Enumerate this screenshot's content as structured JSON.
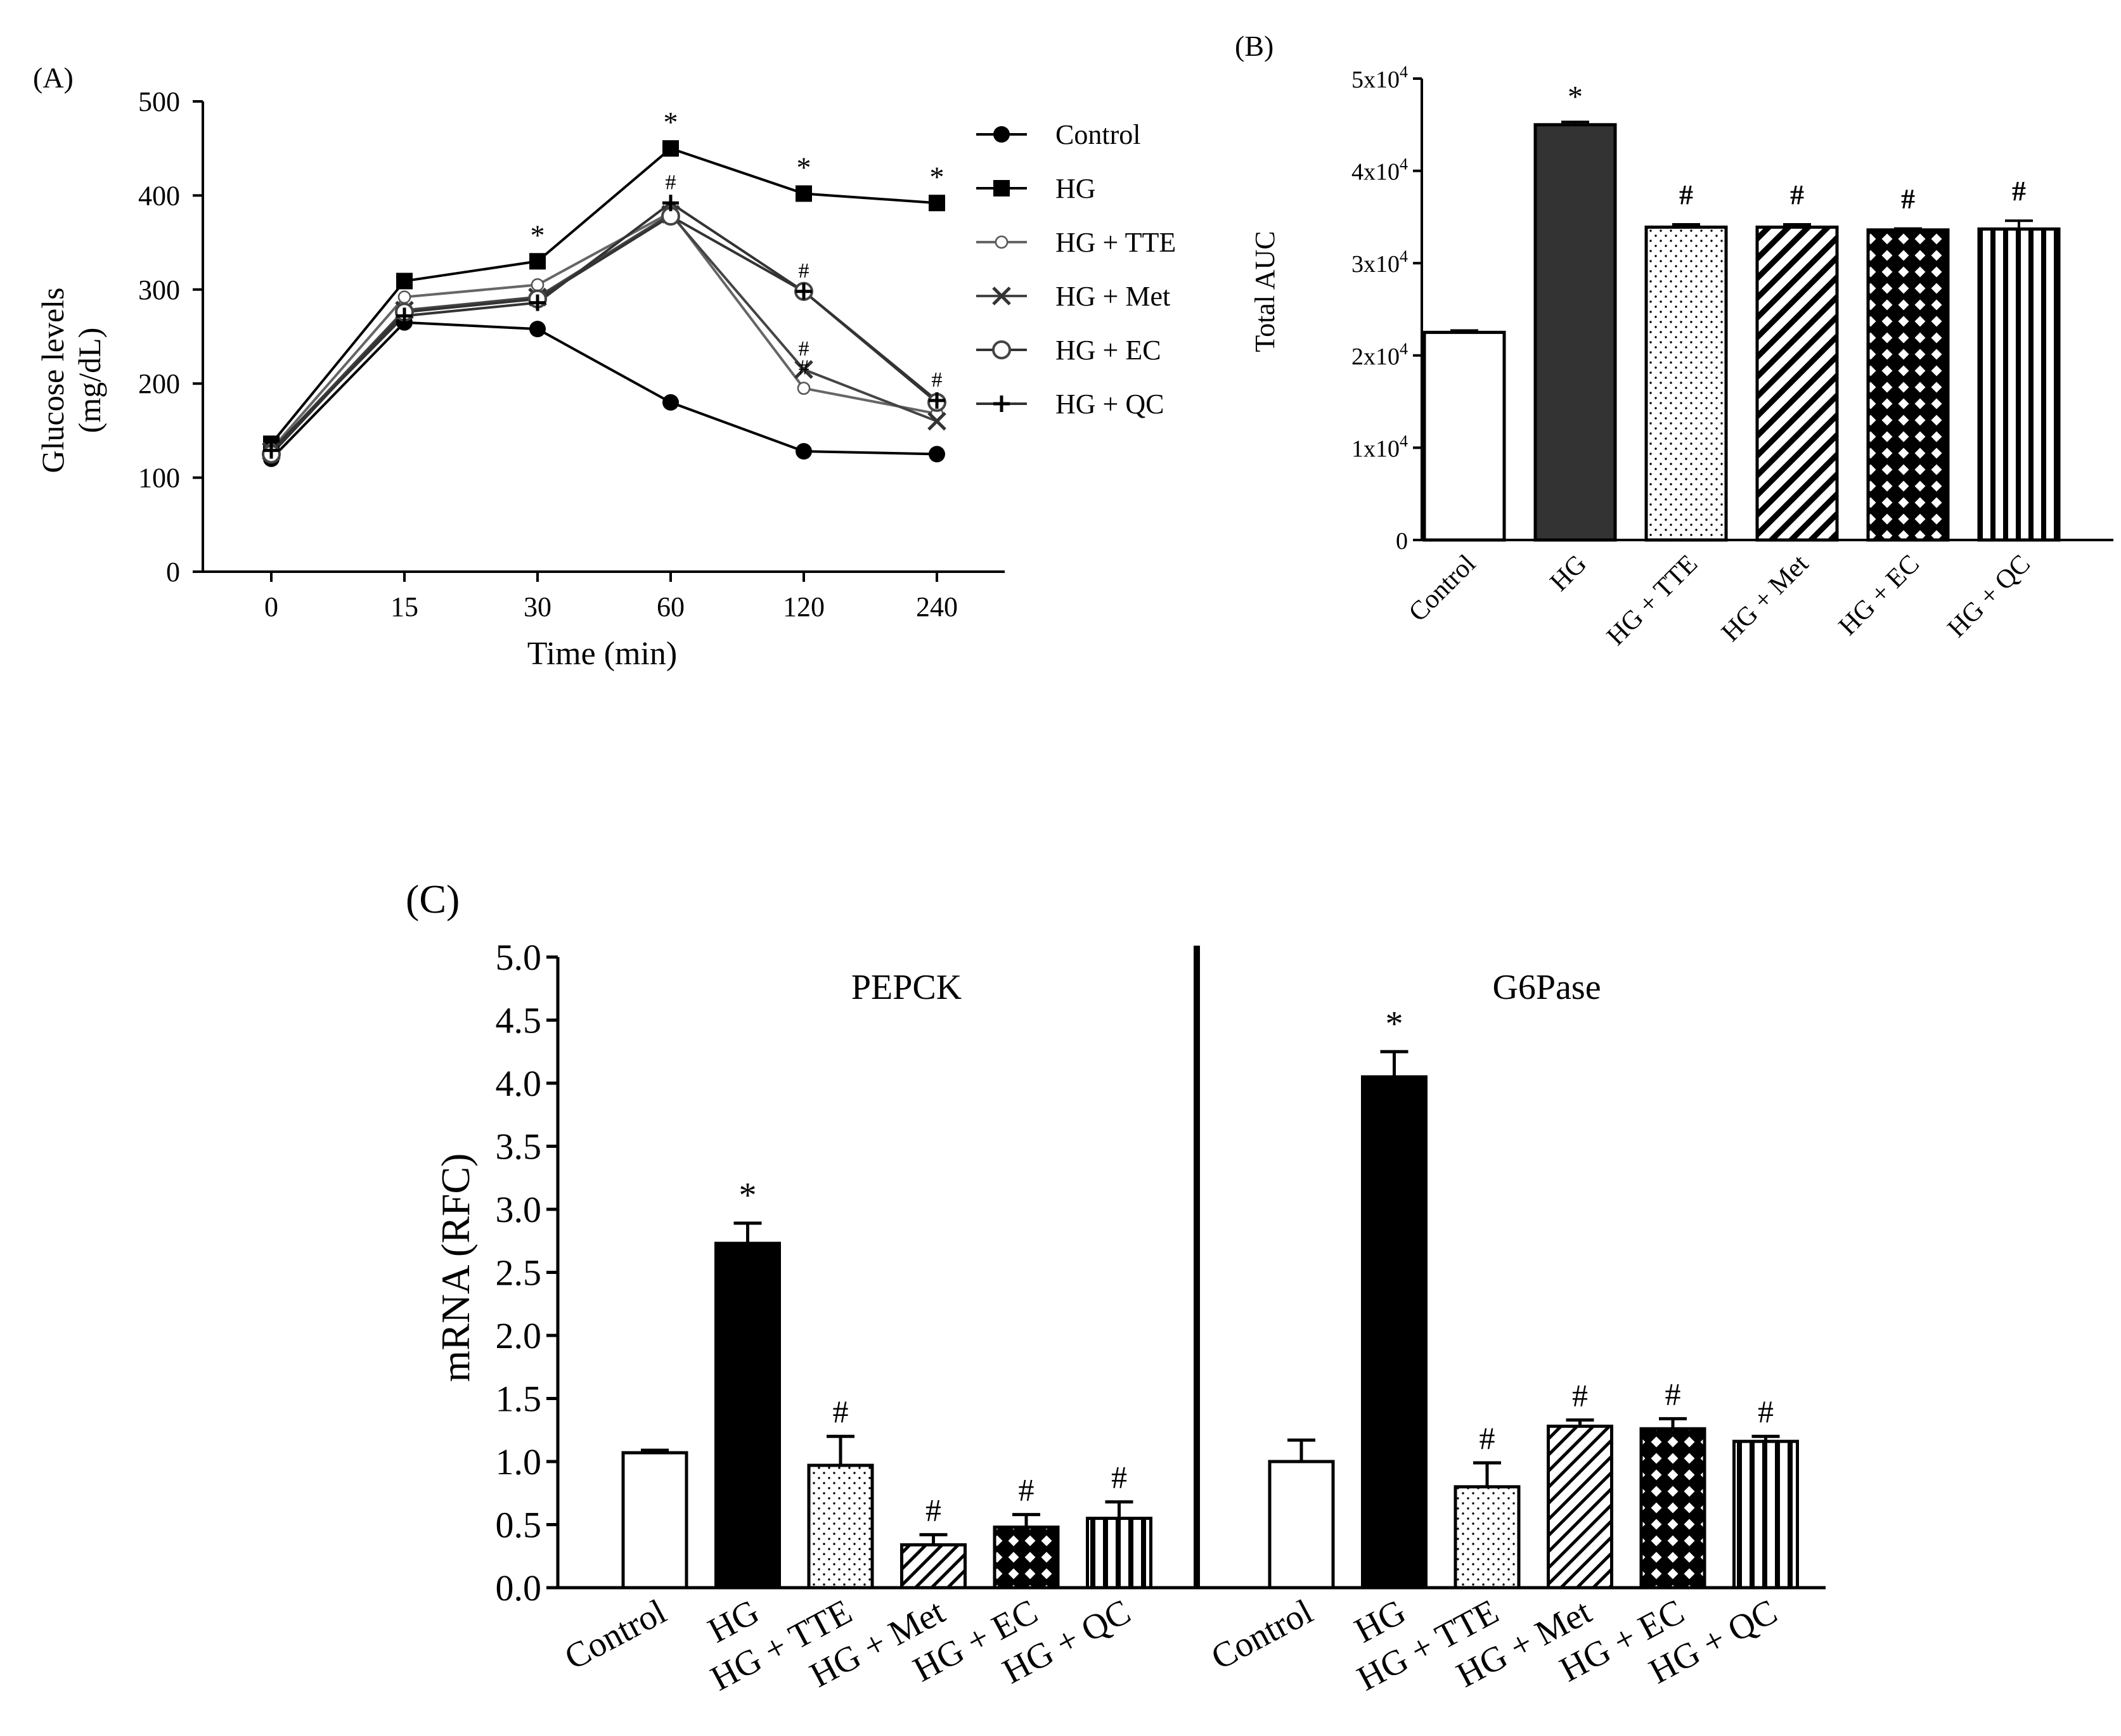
{
  "chart_data": [
    {
      "panel": "(A)",
      "type": "line",
      "xlabel": "Time (min)",
      "ylabel_lines": [
        "Glucose levels",
        "(mg/dL)"
      ],
      "categories": [
        "0",
        "15",
        "30",
        "60",
        "120",
        "240"
      ],
      "ylim": [
        0,
        500
      ],
      "yticks": [
        "0",
        "100",
        "200",
        "300",
        "400",
        "500"
      ],
      "series": [
        {
          "name": "Control",
          "marker": "filled-circle",
          "values": [
            120,
            265,
            258,
            180,
            128,
            125
          ]
        },
        {
          "name": "HG",
          "marker": "filled-square",
          "values": [
            136,
            309,
            330,
            450,
            402,
            392
          ]
        },
        {
          "name": "HG + TTE",
          "marker": "small-open-circle",
          "values": [
            130,
            292,
            305,
            382,
            195,
            168
          ]
        },
        {
          "name": "HG + Met",
          "marker": "x",
          "values": [
            128,
            278,
            292,
            380,
            215,
            160
          ]
        },
        {
          "name": "HG + EC",
          "marker": "open-circle",
          "values": [
            125,
            276,
            290,
            378,
            298,
            180
          ]
        },
        {
          "name": "HG + QC",
          "marker": "plus",
          "values": [
            129,
            272,
            286,
            392,
            298,
            182
          ]
        }
      ],
      "annotations": [
        {
          "text": "*",
          "x": "30",
          "y": 330
        },
        {
          "text": "*",
          "x": "60",
          "y": 450
        },
        {
          "text": "*",
          "x": "120",
          "y": 402
        },
        {
          "text": "*",
          "x": "240",
          "y": 392
        },
        {
          "text": "#",
          "x": "60",
          "y": 392
        },
        {
          "text": "#",
          "x": "120",
          "y": 298
        },
        {
          "text": "#",
          "x": "120",
          "y": 215
        },
        {
          "text": "#",
          "x": "120",
          "y": 195
        },
        {
          "text": "#",
          "x": "240",
          "y": 182
        }
      ],
      "legend_position": "right"
    },
    {
      "panel": "(B)",
      "type": "bar",
      "ylabel": "Total AUC",
      "categories": [
        "Control",
        "HG",
        "HG + TTE",
        "HG + Met",
        "HG + EC",
        "HG + QC"
      ],
      "values": [
        22500,
        45000,
        33900,
        33900,
        33600,
        33700
      ],
      "errors": [
        200,
        300,
        300,
        300,
        150,
        900
      ],
      "patterns": [
        "white",
        "dark",
        "dots",
        "diagonal",
        "crosshatch",
        "vertical"
      ],
      "sig": [
        "",
        "*",
        "#",
        "#",
        "#",
        "#"
      ],
      "ylim": [
        0,
        50000
      ],
      "yticks": [
        {
          "base": "0",
          "exp": ""
        },
        {
          "base": "1x10",
          "exp": "4"
        },
        {
          "base": "2x10",
          "exp": "4"
        },
        {
          "base": "3x10",
          "exp": "4"
        },
        {
          "base": "4x10",
          "exp": "4"
        },
        {
          "base": "5x10",
          "exp": "4"
        }
      ]
    },
    {
      "panel": "(C)",
      "type": "bar",
      "ylabel": "mRNA (RFC)",
      "ylim": [
        0,
        5.0
      ],
      "yticks": [
        "0.0",
        "0.5",
        "1.0",
        "1.5",
        "2.0",
        "2.5",
        "3.0",
        "3.5",
        "4.0",
        "4.5",
        "5.0"
      ],
      "groups": [
        {
          "name": "PEPCK",
          "categories": [
            "Control",
            "HG",
            "HG + TTE",
            "HG + Met",
            "HG + EC",
            "HG + QC"
          ],
          "values": [
            1.07,
            2.73,
            0.97,
            0.34,
            0.48,
            0.55
          ],
          "errors": [
            0.02,
            0.16,
            0.23,
            0.08,
            0.1,
            0.13
          ],
          "sig": [
            "",
            "*",
            "#",
            "#",
            "#",
            "#"
          ]
        },
        {
          "name": "G6Pase",
          "categories": [
            "Control",
            "HG",
            "HG + TTE",
            "HG + Met",
            "HG + EC",
            "HG + QC"
          ],
          "values": [
            1.0,
            4.05,
            0.8,
            1.28,
            1.26,
            1.16
          ],
          "errors": [
            0.17,
            0.2,
            0.19,
            0.05,
            0.08,
            0.04
          ],
          "sig": [
            "",
            "*",
            "#",
            "#",
            "#",
            "#"
          ]
        }
      ],
      "patterns": [
        "white",
        "black",
        "dots",
        "diagonal",
        "crosshatch",
        "vertical"
      ]
    }
  ]
}
